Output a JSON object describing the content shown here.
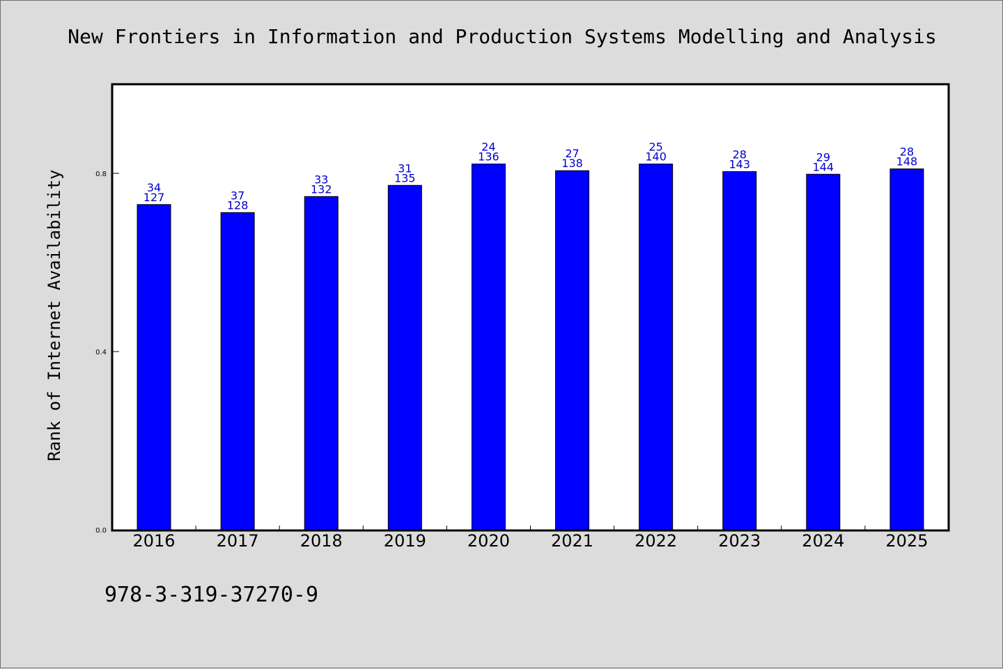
{
  "chart_data": {
    "type": "bar",
    "title": "New Frontiers in Information and Production Systems Modelling and Analysis",
    "ylabel": "Rank of Internet Availability",
    "xlabel": "",
    "categories": [
      "2016",
      "2017",
      "2018",
      "2019",
      "2020",
      "2021",
      "2022",
      "2023",
      "2024",
      "2025"
    ],
    "values": [
      0.73,
      0.712,
      0.748,
      0.773,
      0.821,
      0.806,
      0.821,
      0.804,
      0.798,
      0.81
    ],
    "data_labels_top": [
      "34",
      "37",
      "33",
      "31",
      "24",
      "27",
      "25",
      "28",
      "29",
      "28"
    ],
    "data_labels_bottom": [
      "127",
      "128",
      "132",
      "135",
      "136",
      "138",
      "140",
      "143",
      "144",
      "148"
    ],
    "ylim": [
      0,
      1.0
    ],
    "yticks": [
      0.0,
      0.4,
      0.8
    ],
    "ytick_labels": [
      "0.0",
      "0.4",
      "0.8"
    ],
    "bar_color": "#0000ff",
    "label_color": "#0000cd",
    "grid": false,
    "legend": "none"
  },
  "footer_text": "978-3-319-37270-9"
}
